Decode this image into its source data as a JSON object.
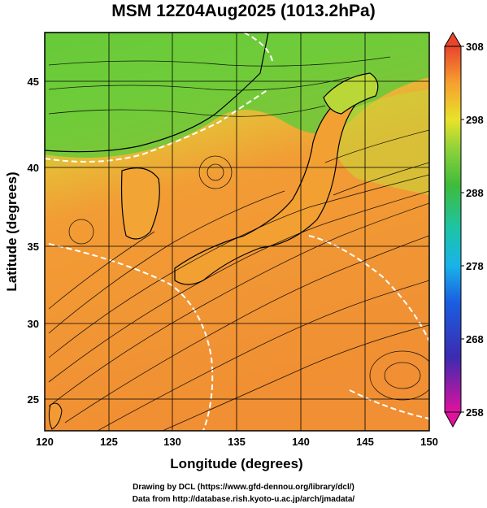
{
  "title": "MSM 12Z04Aug2025 (1013.2hPa)",
  "axes": {
    "xlabel": "Longitude (degrees)",
    "ylabel": "Latitude  (degrees)",
    "x_ticks": [
      "120",
      "125",
      "130",
      "135",
      "140",
      "145",
      "150"
    ],
    "y_ticks": [
      "25",
      "30",
      "35",
      "40",
      "45"
    ],
    "xlim": [
      120,
      150
    ],
    "ylim": [
      22.4,
      47.6
    ]
  },
  "colorbar": {
    "ticks": [
      "308",
      "298",
      "288",
      "278",
      "268",
      "258"
    ],
    "range": [
      258,
      308
    ]
  },
  "credits": {
    "line1": "Drawing by DCL (https://www.gfd-dennou.org/library/dcl/)",
    "line2": "Data from http://database.rish.kyoto-u.ac.jp/arch/jmadata/"
  },
  "colors": {
    "warm": "#f49a33",
    "mid": "#e8e02a",
    "cool": "#57c83a",
    "land_outline": "#000000",
    "contour": "#ffffff"
  }
}
